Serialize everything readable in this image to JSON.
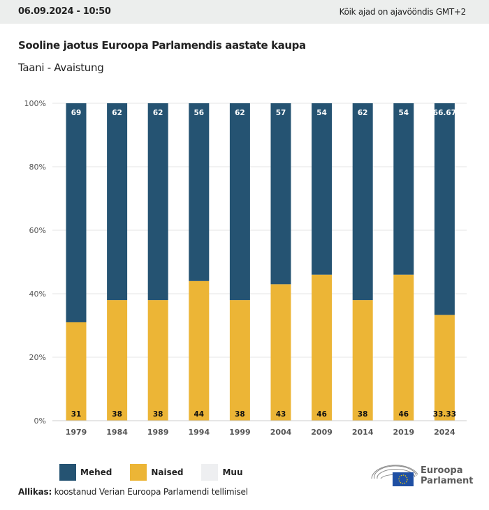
{
  "header": {
    "datetime": "06.09.2024 - 10:50",
    "timezone_note": "Kõik ajad on ajavööndis GMT+2"
  },
  "title": "Sooline jaotus Euroopa Parlamendis aastate kaupa",
  "subtitle": "Taani - Avaistung",
  "chart_data": {
    "type": "bar",
    "stacked": true,
    "categories": [
      "1979",
      "1984",
      "1989",
      "1994",
      "1999",
      "2004",
      "2009",
      "2014",
      "2019",
      "2024"
    ],
    "series": [
      {
        "name": "Mehed",
        "color": "#255372",
        "values": [
          69,
          62,
          62,
          56,
          62,
          57,
          54,
          62,
          54,
          66.67
        ],
        "labels": [
          "69",
          "62",
          "62",
          "56",
          "62",
          "57",
          "54",
          "62",
          "54",
          "66.67"
        ]
      },
      {
        "name": "Naised",
        "color": "#ecb536",
        "values": [
          31,
          38,
          38,
          44,
          38,
          43,
          46,
          38,
          46,
          33.33
        ],
        "labels": [
          "31",
          "38",
          "38",
          "44",
          "38",
          "43",
          "46",
          "38",
          "46",
          "33.33"
        ]
      },
      {
        "name": "Muu",
        "color": "#eeeff1",
        "values": [
          0,
          0,
          0,
          0,
          0,
          0,
          0,
          0,
          0,
          0
        ]
      }
    ],
    "ylim": [
      0,
      100
    ],
    "yticks": [
      "0%",
      "20%",
      "40%",
      "60%",
      "80%",
      "100%"
    ],
    "grid": true,
    "legend": "bottom-left"
  },
  "source": {
    "label": "Allikas:",
    "text": "koostanud Verian Euroopa Parlamendi tellimisel"
  },
  "logo": {
    "line1": "Euroopa",
    "line2": "Parlament"
  }
}
